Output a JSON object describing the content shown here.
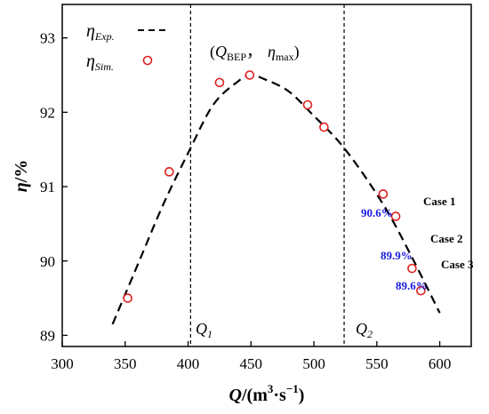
{
  "chart_data": {
    "type": "scatter",
    "xlim": [
      300,
      625
    ],
    "ylim": [
      88.85,
      93.45
    ],
    "xticks": [
      300,
      350,
      400,
      450,
      500,
      550,
      600
    ],
    "yticks": [
      89,
      90,
      91,
      92,
      93
    ],
    "xlabel": {
      "main": "Q",
      "unit_open": "/(m",
      "unit_exp1": "3",
      "unit_mid": "·s",
      "unit_exp2": "−1",
      "unit_close": ")"
    },
    "ylabel": {
      "main": "η",
      "unit": "/%"
    },
    "legend": {
      "position": "top-left",
      "entries": [
        {
          "symbol": "η",
          "subscript": "Exp.",
          "style": "dashed-line"
        },
        {
          "symbol": "η",
          "subscript": "Sim.",
          "style": "open-circle"
        }
      ]
    },
    "series": [
      {
        "style": "dashed-line",
        "x": [
          340,
          360,
          380,
          400,
          420,
          440,
          450,
          460,
          480,
          500,
          520,
          540,
          560,
          580,
          600
        ],
        "y": [
          89.15,
          89.95,
          90.75,
          91.45,
          92.1,
          92.42,
          92.5,
          92.45,
          92.28,
          91.95,
          91.6,
          91.15,
          90.62,
          89.98,
          89.3
        ]
      },
      {
        "style": "open-circle",
        "color": "#e02020",
        "x": [
          352,
          385,
          425,
          449,
          495,
          508,
          555,
          565,
          578,
          585
        ],
        "y": [
          89.5,
          91.2,
          92.4,
          92.5,
          92.1,
          91.8,
          90.9,
          90.6,
          89.9,
          89.6
        ]
      }
    ],
    "vlines": [
      {
        "x": 402,
        "label": "Q",
        "subscript": "1"
      },
      {
        "x": 524,
        "label": "Q",
        "subscript": "2"
      }
    ],
    "annotations": {
      "bep": {
        "open": "(",
        "q": "Q",
        "q_sub": "BEP",
        "sep": "，",
        "eta": "η",
        "eta_sub": "max",
        "close": ")"
      },
      "cases": [
        {
          "label": "Case 1",
          "percent": "90.6%"
        },
        {
          "label": "Case 2",
          "percent": "89.9%"
        },
        {
          "label": "Case 3",
          "percent": "89.6%"
        }
      ]
    },
    "colors": {
      "marker": "#e02020",
      "percent_text": "#1a1adf",
      "axis": "#000000"
    }
  }
}
